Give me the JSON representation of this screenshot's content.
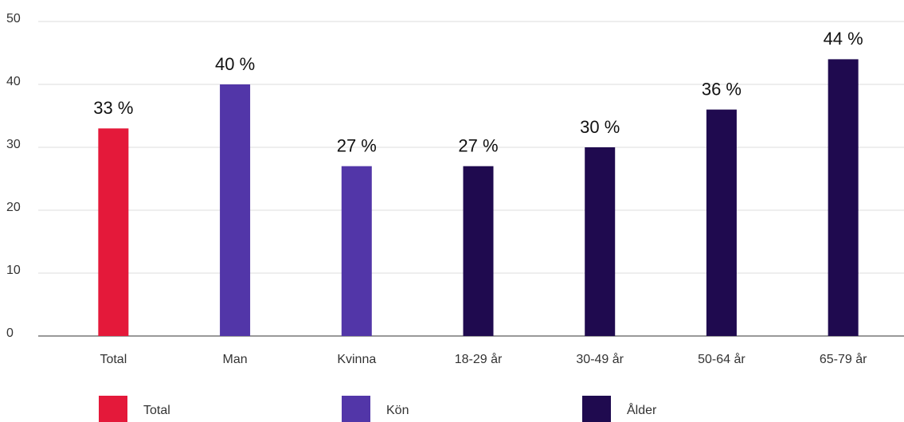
{
  "chart_data": {
    "type": "bar",
    "categories": [
      "Total",
      "Man",
      "Kvinna",
      "18-29 år",
      "30-49 år",
      "50-64 år",
      "65-79 år"
    ],
    "series": [
      {
        "name": "Total",
        "color": "#e4193a",
        "values": [
          33,
          null,
          null,
          null,
          null,
          null,
          null
        ],
        "value_labels": [
          "33 %",
          null,
          null,
          null,
          null,
          null,
          null
        ]
      },
      {
        "name": "Kön",
        "color": "#5236a8",
        "values": [
          null,
          40,
          27,
          null,
          null,
          null,
          null
        ],
        "value_labels": [
          null,
          "40 %",
          "27 %",
          null,
          null,
          null,
          null
        ]
      },
      {
        "name": "Ålder",
        "color": "#1f0a4f",
        "values": [
          null,
          null,
          null,
          27,
          30,
          36,
          44
        ],
        "value_labels": [
          null,
          null,
          null,
          "27 %",
          "30 %",
          "36 %",
          "44 %"
        ]
      }
    ],
    "ylim": [
      0,
      50
    ],
    "yticks": [
      0,
      10,
      20,
      30,
      40,
      50
    ],
    "grid": true,
    "legend": "bottom"
  }
}
